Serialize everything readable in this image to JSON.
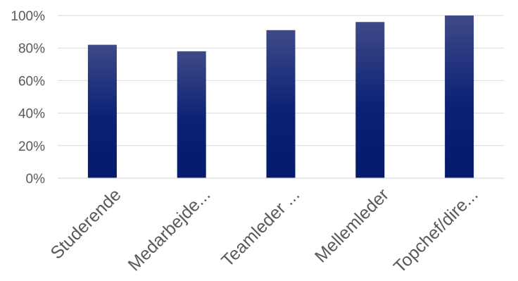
{
  "chart_data": {
    "type": "bar",
    "categories": [
      "Studerende",
      "Medarbejde...",
      "Teamleder ...",
      "Mellemleder",
      "Topchef/dire..."
    ],
    "values": [
      82,
      78,
      91,
      96,
      100
    ],
    "ylim": [
      0,
      100
    ],
    "yticks": [
      0,
      20,
      40,
      60,
      80,
      100
    ],
    "ytick_labels": [
      "0%",
      "20%",
      "40%",
      "60%",
      "80%",
      "100%"
    ],
    "grid": true,
    "legend": "none",
    "colors": {
      "bar_top": "#3f4a87",
      "bar_bottom": "#041a6b",
      "grid": "#d9d9d9",
      "text": "#595959"
    }
  }
}
